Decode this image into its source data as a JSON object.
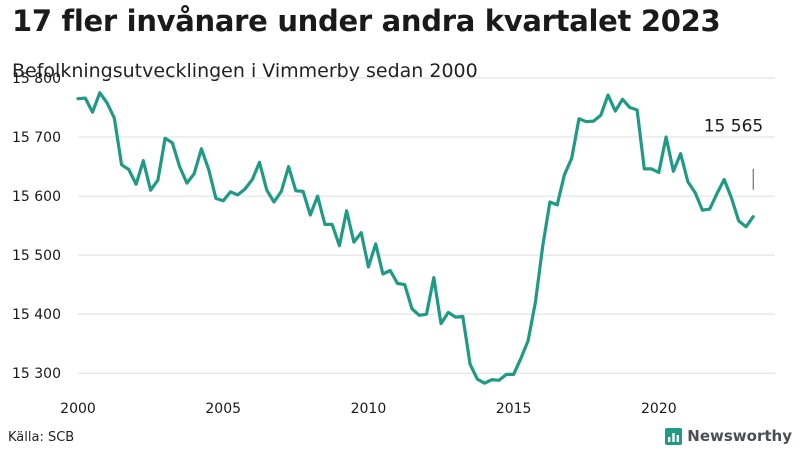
{
  "title": "17 fler invånare under andra kvartalet 2023",
  "subtitle": "Befolkningsutvecklingen i Vimmerby sedan 2000",
  "source": "Källa: SCB",
  "brand": "Newsworthy",
  "colors": {
    "line": "#1f9a85",
    "grid": "#dedede",
    "text": "#1a1a1a",
    "brand": "#4a4f55"
  },
  "chart_data": {
    "type": "line",
    "title": "17 fler invånare under andra kvartalet 2023",
    "xlabel": "",
    "ylabel": "",
    "xlim": [
      2000,
      2024
    ],
    "ylim": [
      15280,
      15800
    ],
    "x_ticks": [
      2000,
      2005,
      2010,
      2015,
      2020
    ],
    "y_ticks": [
      15300,
      15400,
      15500,
      15600,
      15700,
      15800
    ],
    "y_tick_labels": [
      "15 300",
      "15 400",
      "15 500",
      "15 600",
      "15 700",
      "15 800"
    ],
    "grid": "horizontal",
    "annotation": {
      "text": "15 565",
      "x": 2023.25,
      "y": 15565
    },
    "series": [
      {
        "x": [
          2000.0,
          2000.25,
          2000.5,
          2000.75,
          2001.0,
          2001.25,
          2001.5,
          2001.75,
          2002.0,
          2002.25,
          2002.5,
          2002.75,
          2003.0,
          2003.25,
          2003.5,
          2003.75,
          2004.0,
          2004.25,
          2004.5,
          2004.75,
          2005.0,
          2005.25,
          2005.5,
          2005.75,
          2006.0,
          2006.25,
          2006.5,
          2006.75,
          2007.0,
          2007.25,
          2007.5,
          2007.75,
          2008.0,
          2008.25,
          2008.5,
          2008.75,
          2009.0,
          2009.25,
          2009.5,
          2009.75,
          2010.0,
          2010.25,
          2010.5,
          2010.75,
          2011.0,
          2011.25,
          2011.5,
          2011.75,
          2012.0,
          2012.25,
          2012.5,
          2012.75,
          2013.0,
          2013.25,
          2013.5,
          2013.75,
          2014.0,
          2014.25,
          2014.5,
          2014.75,
          2015.0,
          2015.25,
          2015.5,
          2015.75,
          2016.0,
          2016.25,
          2016.5,
          2016.75,
          2017.0,
          2017.25,
          2017.5,
          2017.75,
          2018.0,
          2018.25,
          2018.5,
          2018.75,
          2019.0,
          2019.25,
          2019.5,
          2019.75,
          2020.0,
          2020.25,
          2020.5,
          2020.75,
          2021.0,
          2021.25,
          2021.5,
          2021.75,
          2022.0,
          2022.25,
          2022.5,
          2022.75,
          2023.0,
          2023.25
        ],
        "values": [
          15765,
          15766,
          15742,
          15775,
          15758,
          15732,
          15653,
          15645,
          15620,
          15660,
          15610,
          15627,
          15698,
          15690,
          15650,
          15622,
          15638,
          15680,
          15645,
          15596,
          15592,
          15607,
          15602,
          15612,
          15628,
          15657,
          15610,
          15590,
          15608,
          15650,
          15609,
          15608,
          15568,
          15600,
          15552,
          15552,
          15516,
          15575,
          15522,
          15538,
          15480,
          15519,
          15468,
          15474,
          15452,
          15450,
          15409,
          15398,
          15400,
          15462,
          15384,
          15403,
          15395,
          15396,
          15315,
          15290,
          15283,
          15289,
          15288,
          15298,
          15298,
          15325,
          15355,
          15420,
          15515,
          15590,
          15585,
          15636,
          15664,
          15731,
          15726,
          15727,
          15737,
          15771,
          15744,
          15764,
          15750,
          15746,
          15646,
          15646,
          15640,
          15700,
          15642,
          15672,
          15624,
          15606,
          15576,
          15578,
          15604,
          15628,
          15597,
          15558,
          15548,
          15565
        ]
      }
    ]
  }
}
